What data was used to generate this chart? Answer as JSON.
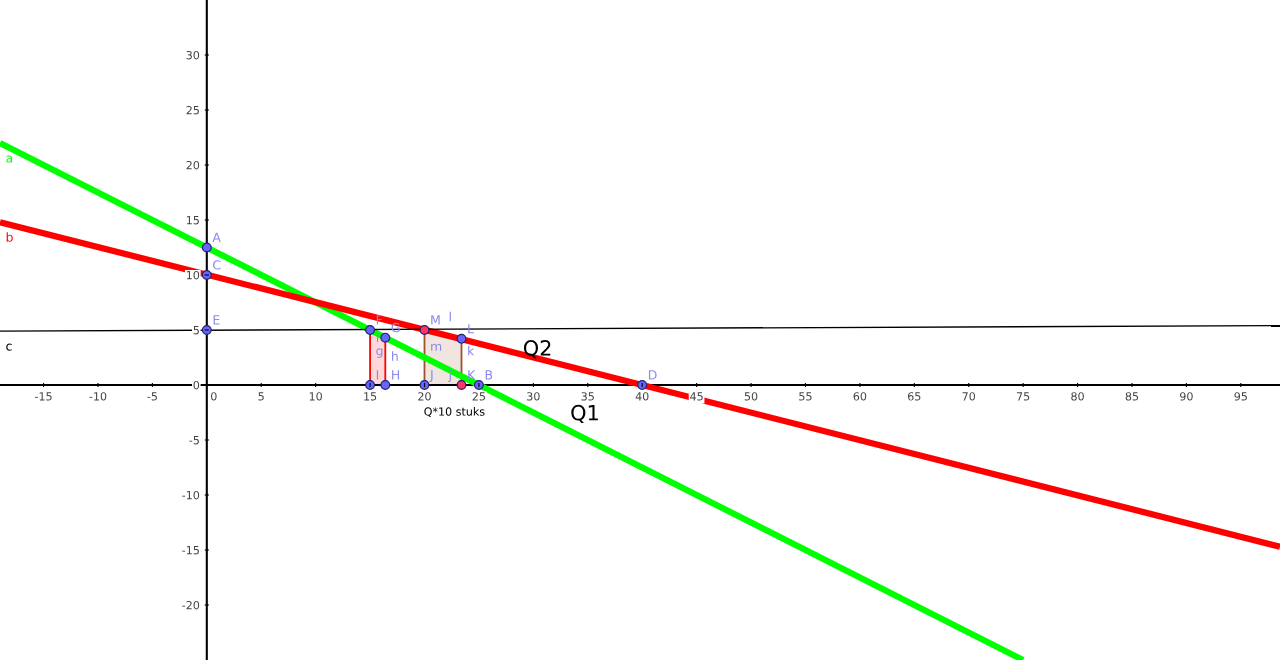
{
  "chart_data": {
    "type": "line",
    "xlim": [
      -19,
      98.6
    ],
    "ylim": [
      -25,
      35
    ],
    "xticks": [
      -15,
      -10,
      -5,
      0,
      5,
      10,
      15,
      20,
      25,
      30,
      35,
      40,
      45,
      50,
      55,
      60,
      65,
      70,
      75,
      80,
      85,
      90,
      95
    ],
    "yticks": [
      -20,
      -15,
      -10,
      -5,
      0,
      5,
      10,
      15,
      20,
      25,
      30
    ],
    "series": [
      {
        "name": "a",
        "color": "#00ff00",
        "x": [
          -19,
          75
        ],
        "values": [
          22,
          -25
        ]
      },
      {
        "name": "b",
        "color": "#ff0000",
        "x": [
          -19,
          98.6
        ],
        "values": [
          14.8,
          -14.7
        ]
      },
      {
        "name": "c",
        "color": "#000000",
        "x": [
          -19,
          98.6
        ],
        "values": [
          4.9,
          5.4
        ]
      },
      {
        "type": "area",
        "color": "#ff0000",
        "x": [
          15,
          16.4
        ],
        "values": [
          5,
          4.3
        ]
      },
      {
        "type": "area",
        "color": "#a0522d",
        "x": [
          20,
          23.4
        ],
        "values": [
          5,
          4.2
        ]
      },
      {
        "type": "scatter",
        "x": [
          0,
          0,
          0,
          15,
          16.4,
          16.4,
          15,
          20,
          23.4,
          23.4,
          25,
          40,
          20
        ],
        "values": [
          12.5,
          10,
          5,
          5,
          4.3,
          0,
          0,
          0,
          4.2,
          0,
          0,
          0,
          5
        ],
        "colors": [
          "#6666ff",
          "#6666ff",
          "#6666ff",
          "#6666ff",
          "#6666ff",
          "#6666ff",
          "#6666ff",
          "#6666ff",
          "#6666ff",
          "#ff3366",
          "#6666ff",
          "#6666ff",
          "#ff3366"
        ]
      }
    ],
    "annotations": [
      {
        "text": "A",
        "x": 0,
        "y": 12.5
      },
      {
        "text": "C",
        "x": 0,
        "y": 10
      },
      {
        "text": "E",
        "x": 0,
        "y": 5
      },
      {
        "text": "F",
        "x": 15,
        "y": 5
      },
      {
        "text": "G",
        "x": 16.4,
        "y": 4.3
      },
      {
        "text": "H",
        "x": 16.4,
        "y": 0
      },
      {
        "text": "I",
        "x": 15,
        "y": 0
      },
      {
        "text": "J",
        "x": 20,
        "y": 0
      },
      {
        "text": "K",
        "x": 23.4,
        "y": 0
      },
      {
        "text": "B",
        "x": 25,
        "y": 0
      },
      {
        "text": "D",
        "x": 40,
        "y": 0
      },
      {
        "text": "M",
        "x": 20,
        "y": 5
      },
      {
        "text": "L",
        "x": 23.4,
        "y": 4.2
      },
      {
        "text": "f",
        "x": 15,
        "y": 3.4
      },
      {
        "text": "g",
        "x": 15,
        "y": 2.2
      },
      {
        "text": "h",
        "x": 16.4,
        "y": 1.7
      },
      {
        "text": "m",
        "x": 20,
        "y": 2.6
      },
      {
        "text": "k",
        "x": 23.4,
        "y": 2.2
      },
      {
        "text": "j",
        "x": 21.7,
        "y": 0
      },
      {
        "text": "l",
        "x": 21.7,
        "y": 5.3
      },
      "Q2",
      "Q1",
      "Q*10 stuks"
    ]
  }
}
